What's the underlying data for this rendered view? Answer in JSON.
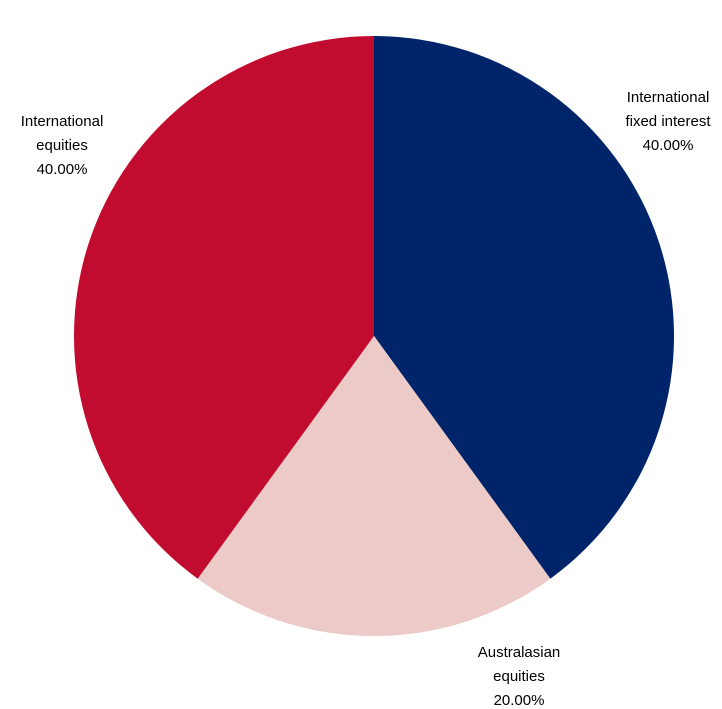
{
  "chart_data": {
    "type": "pie",
    "slices": [
      {
        "label_lines": [
          "International",
          "fixed interest"
        ],
        "value": 40,
        "value_label": "40.00%",
        "color": "#002469"
      },
      {
        "label_lines": [
          "Australasian",
          "equities"
        ],
        "value": 20,
        "value_label": "20.00%",
        "color": "#ebcac8"
      },
      {
        "label_lines": [
          "International",
          "equities"
        ],
        "value": 40,
        "value_label": "40.00%",
        "color": "#c20c2f"
      }
    ],
    "start_angle": "12 o'clock",
    "direction": "clockwise",
    "legend": "none"
  }
}
